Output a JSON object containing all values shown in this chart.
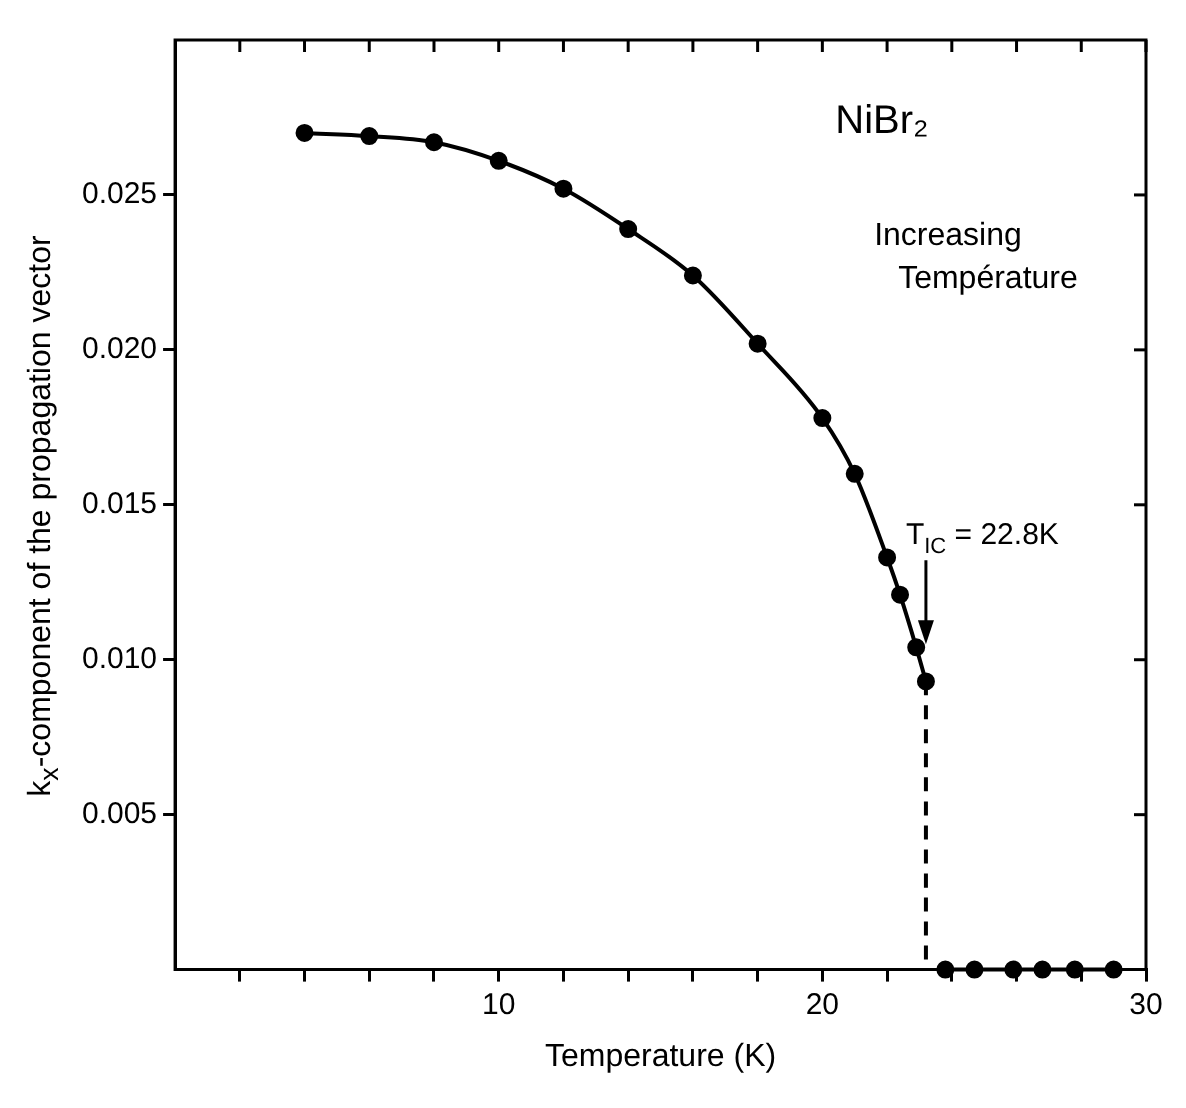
{
  "chart_data": {
    "type": "line",
    "xlabel": "Temperature (K)",
    "ylabel": "k$_{x}$-component of the propagation vector",
    "xlim": [
      0,
      30
    ],
    "xticks": [
      {
        "value": 2,
        "label": null
      },
      {
        "value": 4,
        "label": null
      },
      {
        "value": 6,
        "label": null
      },
      {
        "value": 8,
        "label": null
      },
      10,
      {
        "value": 12,
        "label": null
      },
      {
        "value": 14,
        "label": null
      },
      {
        "value": 16,
        "label": null
      },
      {
        "value": 18,
        "label": null
      },
      20,
      {
        "value": 22,
        "label": null
      },
      {
        "value": 24,
        "label": null
      },
      {
        "value": 26,
        "label": null
      },
      {
        "value": 28,
        "label": null
      },
      30
    ],
    "ylim": [
      0,
      0.03
    ],
    "yticks": [
      {
        "value": 0.005,
        "label": "0.005"
      },
      {
        "value": 0.01,
        "label": "0.010"
      },
      {
        "value": 0.015,
        "label": "0.015"
      },
      {
        "value": 0.02,
        "label": "0.020"
      },
      {
        "value": 0.025,
        "label": "0.025"
      }
    ],
    "grid": false,
    "legend": false,
    "series": [
      {
        "type": "line",
        "color": "#000000",
        "marker": "circle",
        "line_style": "solid",
        "x": [
          4,
          6,
          8,
          10,
          12,
          14,
          16,
          18,
          20,
          21,
          22,
          22.4,
          22.9,
          23.2
        ],
        "values": [
          0.027,
          0.0269,
          0.0267,
          0.0261,
          0.0252,
          0.0239,
          0.0224,
          0.0202,
          0.0178,
          0.016,
          0.0133,
          0.0121,
          0.0104,
          0.0093
        ]
      },
      {
        "type": "line",
        "color": "#000000",
        "line_style": "dashed",
        "x": [
          23.2,
          23.2
        ],
        "values": [
          0.0093,
          0
        ]
      },
      {
        "type": "line",
        "color": "#000000",
        "marker": "circle",
        "line_style": "solid",
        "x": [
          23.8,
          24.7,
          25.9,
          26.8,
          27.8,
          29
        ],
        "values": [
          0,
          0,
          0,
          0,
          0,
          0
        ]
      }
    ],
    "annotations": [
      "NiBr₂",
      "Increasing Température",
      {
        "text": "T$_{IC}$ = 22.8K",
        "x": 23.2,
        "y": 0.0105
      }
    ]
  }
}
